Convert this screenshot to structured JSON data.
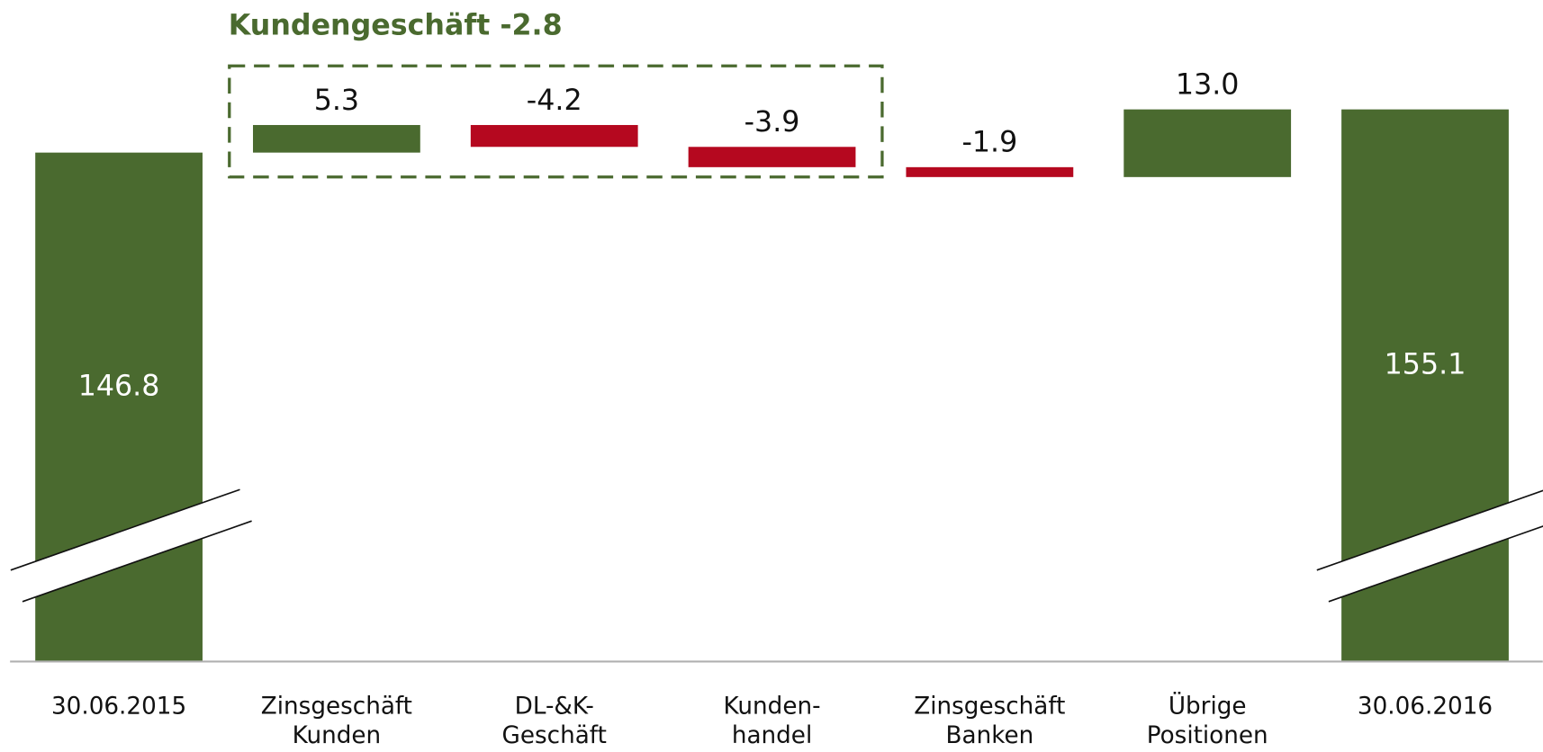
{
  "chart_data": {
    "type": "waterfall",
    "annotation": "Kundengeschäft -2.8",
    "categories": [
      "30.06.2015",
      "Zinsgeschäft\nKunden",
      "DL-&K-\nGeschäft",
      "Kunden-\nhandel",
      "Zinsgeschäft\nBanken",
      "Übrige\nPositionen",
      "30.06.2016"
    ],
    "values": [
      146.8,
      5.3,
      -4.2,
      -3.9,
      -1.9,
      13.0,
      155.1
    ],
    "value_labels": [
      "146.8",
      "5.3",
      "-4.2",
      "-3.9",
      "-1.9",
      "13.0",
      "155.1"
    ],
    "colors": {
      "total": "#4a6a2f",
      "increase": "#4a6a2f",
      "decrease": "#b5081f"
    },
    "ylim": [
      49,
      168
    ]
  }
}
